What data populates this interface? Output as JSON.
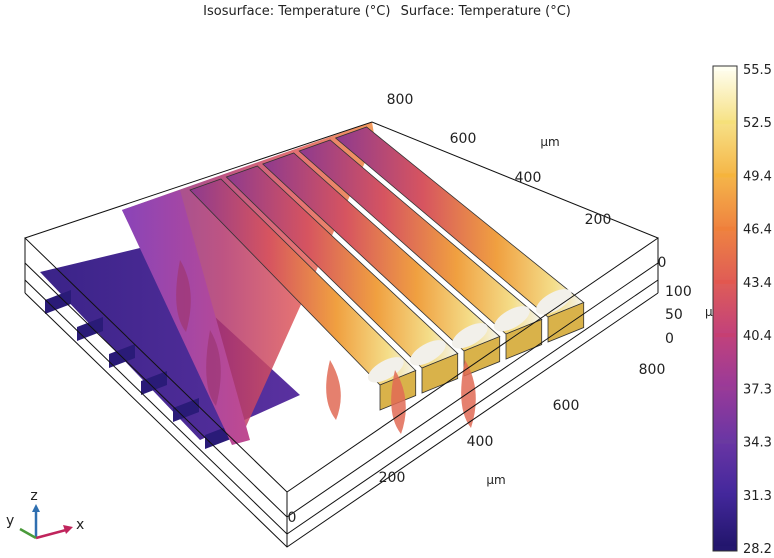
{
  "title": {
    "isosurface": "Isosurface: Temperature (°C)",
    "surface": "Surface: Temperature (°C)"
  },
  "chart_data": {
    "type": "surface-3d",
    "units": "µm",
    "axes": {
      "x": {
        "label": "µm",
        "ticks": [
          "0",
          "200",
          "400",
          "600",
          "800"
        ]
      },
      "y": {
        "label": "µm",
        "ticks": [
          "0",
          "200",
          "400",
          "600",
          "800"
        ]
      },
      "z": {
        "label": "µm",
        "ticks": [
          "0",
          "50",
          "100"
        ]
      }
    },
    "colorbar": {
      "ticks": [
        "55.5",
        "52.5",
        "49.4",
        "46.4",
        "43.4",
        "40.4",
        "37.3",
        "34.3",
        "31.3",
        "28.2"
      ],
      "colors": [
        "#fffff0",
        "#f6e07a",
        "#f5b43c",
        "#ef7f3a",
        "#e2574f",
        "#c63f72",
        "#993c95",
        "#6a3aa0",
        "#43279a",
        "#24176f"
      ],
      "range": [
        28.2,
        55.5
      ]
    },
    "channels": 5
  },
  "triad": {
    "x": "x",
    "y": "y",
    "z": "z"
  }
}
